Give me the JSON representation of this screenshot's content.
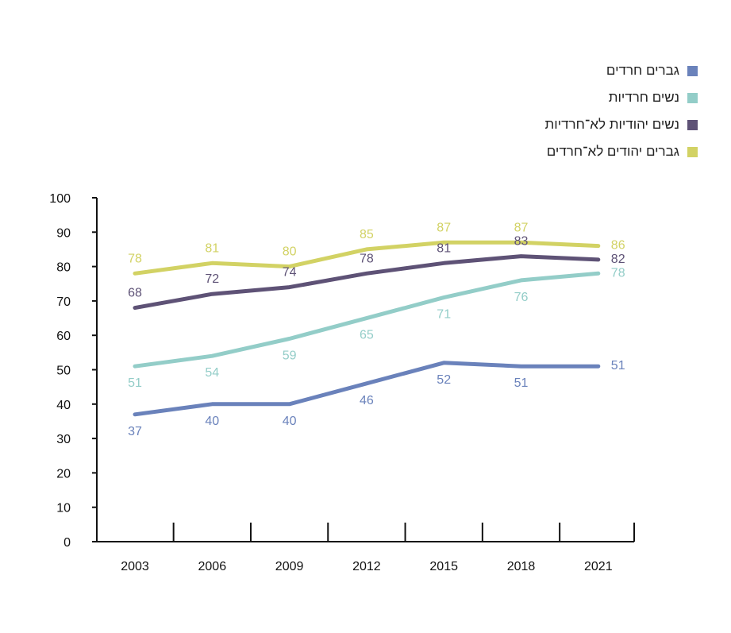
{
  "chart_data": {
    "type": "line",
    "categories": [
      "2003",
      "2006",
      "2009",
      "2012",
      "2015",
      "2018",
      "2021"
    ],
    "ylim": [
      0,
      100
    ],
    "yticks": [
      "0",
      "10",
      "20",
      "30",
      "40",
      "50",
      "60",
      "70",
      "80",
      "90",
      "100"
    ],
    "legend_position": "top-right",
    "grid": false,
    "series": [
      {
        "name": "גברים חרדים",
        "color": "#6a82bb",
        "values": [
          37,
          40,
          40,
          46,
          52,
          51,
          51
        ]
      },
      {
        "name": "נשים חרדיות",
        "color": "#93cdc8",
        "values": [
          51,
          54,
          59,
          65,
          71,
          76,
          78
        ]
      },
      {
        "name": "נשים יהודיות לא־חרדיות",
        "color": "#5e5276",
        "values": [
          68,
          72,
          74,
          78,
          81,
          83,
          82
        ]
      },
      {
        "name": "גברים יהודים לא־חרדים",
        "color": "#d2d264",
        "values": [
          78,
          81,
          80,
          85,
          87,
          87,
          86
        ]
      }
    ]
  }
}
